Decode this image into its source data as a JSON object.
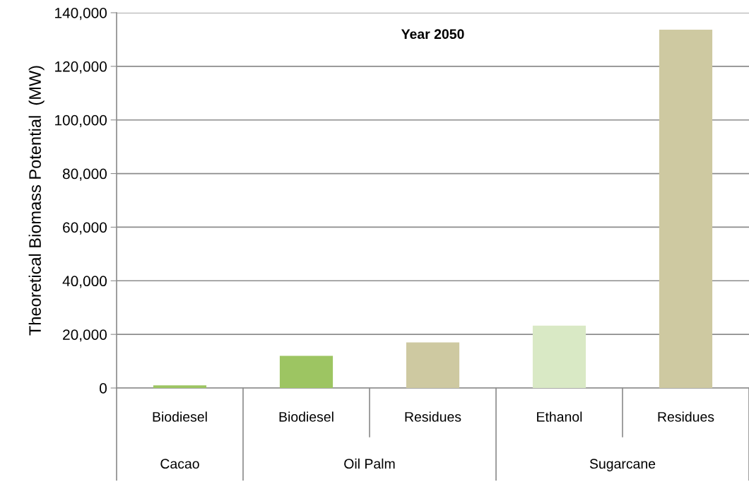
{
  "chart_data": {
    "type": "bar",
    "title": "Year 2050",
    "ylabel": "Theoretical Biomass Potential  (MW)",
    "categories": [
      "Biodiesel",
      "Biodiesel",
      "Residues",
      "Ethanol",
      "Residues"
    ],
    "values": [
      1000,
      12000,
      17000,
      23300,
      133700
    ],
    "colors": [
      "#9dc562",
      "#9dc562",
      "#cec9a1",
      "#d9e9c5",
      "#cec9a1"
    ],
    "annotations": [
      "Cacao",
      "Oil Palm",
      "Sugarcane"
    ],
    "ylim": [
      0,
      140000
    ],
    "yticks": [
      {
        "value": 0,
        "label": "0"
      },
      {
        "value": 20000,
        "label": "20,000"
      },
      {
        "value": 40000,
        "label": "40,000"
      },
      {
        "value": 60000,
        "label": "60,000"
      },
      {
        "value": 80000,
        "label": "80,000"
      },
      {
        "value": 100000,
        "label": "100,000"
      },
      {
        "value": 120000,
        "label": "120,000"
      },
      {
        "value": 140000,
        "label": "140,000"
      }
    ],
    "grid": "y",
    "legend": false
  }
}
